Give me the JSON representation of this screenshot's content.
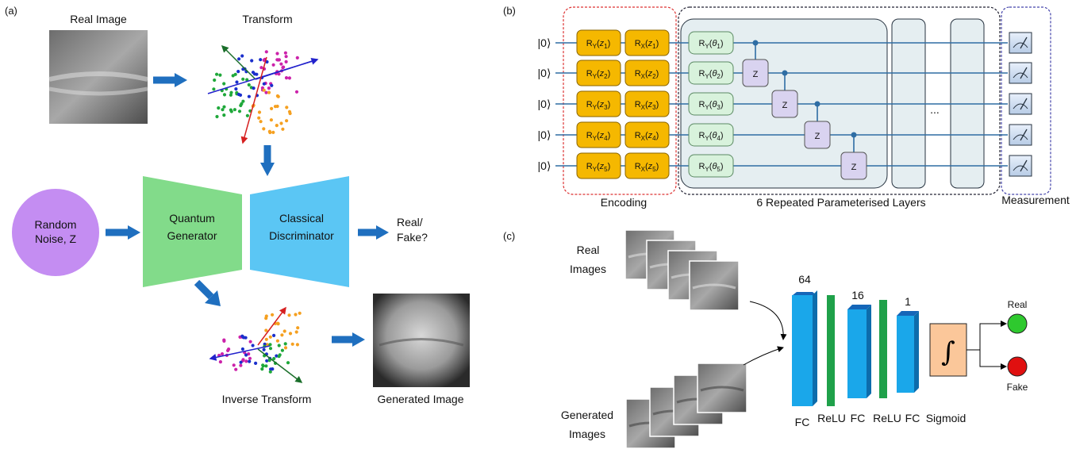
{
  "panel_a": {
    "tag": "(a)",
    "real_image_label": "Real Image",
    "transform_label": "Transform",
    "noise_label_line1": "Random",
    "noise_label_line2": "Noise, Z",
    "generator_line1": "Quantum",
    "generator_line2": "Generator",
    "discriminator_line1": "Classical",
    "discriminator_line2": "Discriminator",
    "output_line1": "Real/",
    "output_line2": "Fake?",
    "inverse_transform_label": "Inverse Transform",
    "generated_image_label": "Generated Image"
  },
  "panel_b": {
    "tag": "(b)",
    "ket": "|0⟩",
    "qubits": [
      "1",
      "2",
      "3",
      "4",
      "5"
    ],
    "ry_prefix": "R",
    "ry_sub": "Y",
    "rx_sub": "X",
    "encoding_label": "Encoding",
    "layers_label": "6 Repeated Parameterised Layers",
    "measurement_label": "Measurement",
    "cz_label": "Z",
    "ellipsis": "...",
    "colors": {
      "encoding_gate": "#f5b800",
      "param_gate": "#d8f2dc",
      "cz_gate": "#d9d3f0",
      "wire": "#2e6da4"
    }
  },
  "panel_c": {
    "tag": "(c)",
    "real_images_line1": "Real",
    "real_images_line2": "Images",
    "generated_images_line1": "Generated",
    "generated_images_line2": "Images",
    "size_64": "64",
    "size_16": "16",
    "size_1": "1",
    "fc1": "FC",
    "relu1": "ReLU",
    "fc2": "FC",
    "relu2": "ReLU",
    "fc3": "FC",
    "sigmoid": "Sigmoid",
    "integral": "∫",
    "real_out": "Real",
    "fake_out": "Fake"
  }
}
